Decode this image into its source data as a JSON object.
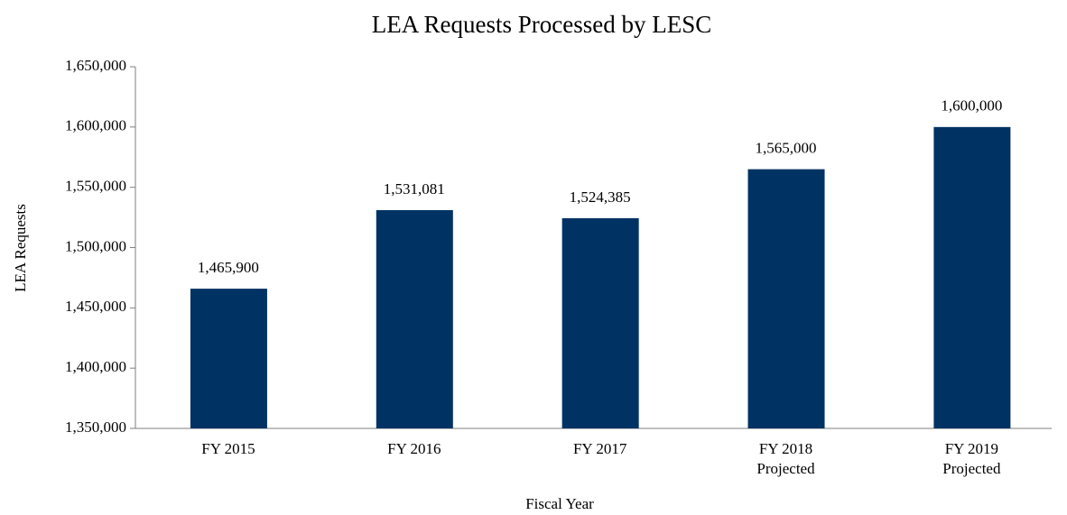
{
  "chart_data": {
    "type": "bar",
    "title": "LEA Requests Processed by LESC",
    "x_label": "Fiscal Year",
    "y_label": "LEA Requests",
    "categories": [
      "FY 2015",
      "FY 2016",
      "FY 2017",
      "FY 2018\nProjected",
      "FY 2019\nProjected"
    ],
    "values": [
      1465900,
      1531081,
      1524385,
      1565000,
      1600000
    ],
    "value_labels": [
      "1,465,900",
      "1,531,081",
      "1,524,385",
      "1,565,000",
      "1,600,000"
    ],
    "color": "#003263",
    "ylim": [
      1350000,
      1650000
    ],
    "yticks": [
      {
        "value": 1350000,
        "label": "1,350,000"
      },
      {
        "value": 1400000,
        "label": "1,400,000"
      },
      {
        "value": 1450000,
        "label": "1,450,000"
      },
      {
        "value": 1500000,
        "label": "1,500,000"
      },
      {
        "value": 1550000,
        "label": "1,550,000"
      },
      {
        "value": 1600000,
        "label": "1,600,000"
      },
      {
        "value": 1650000,
        "label": "1,650,000"
      }
    ],
    "grid": false
  }
}
